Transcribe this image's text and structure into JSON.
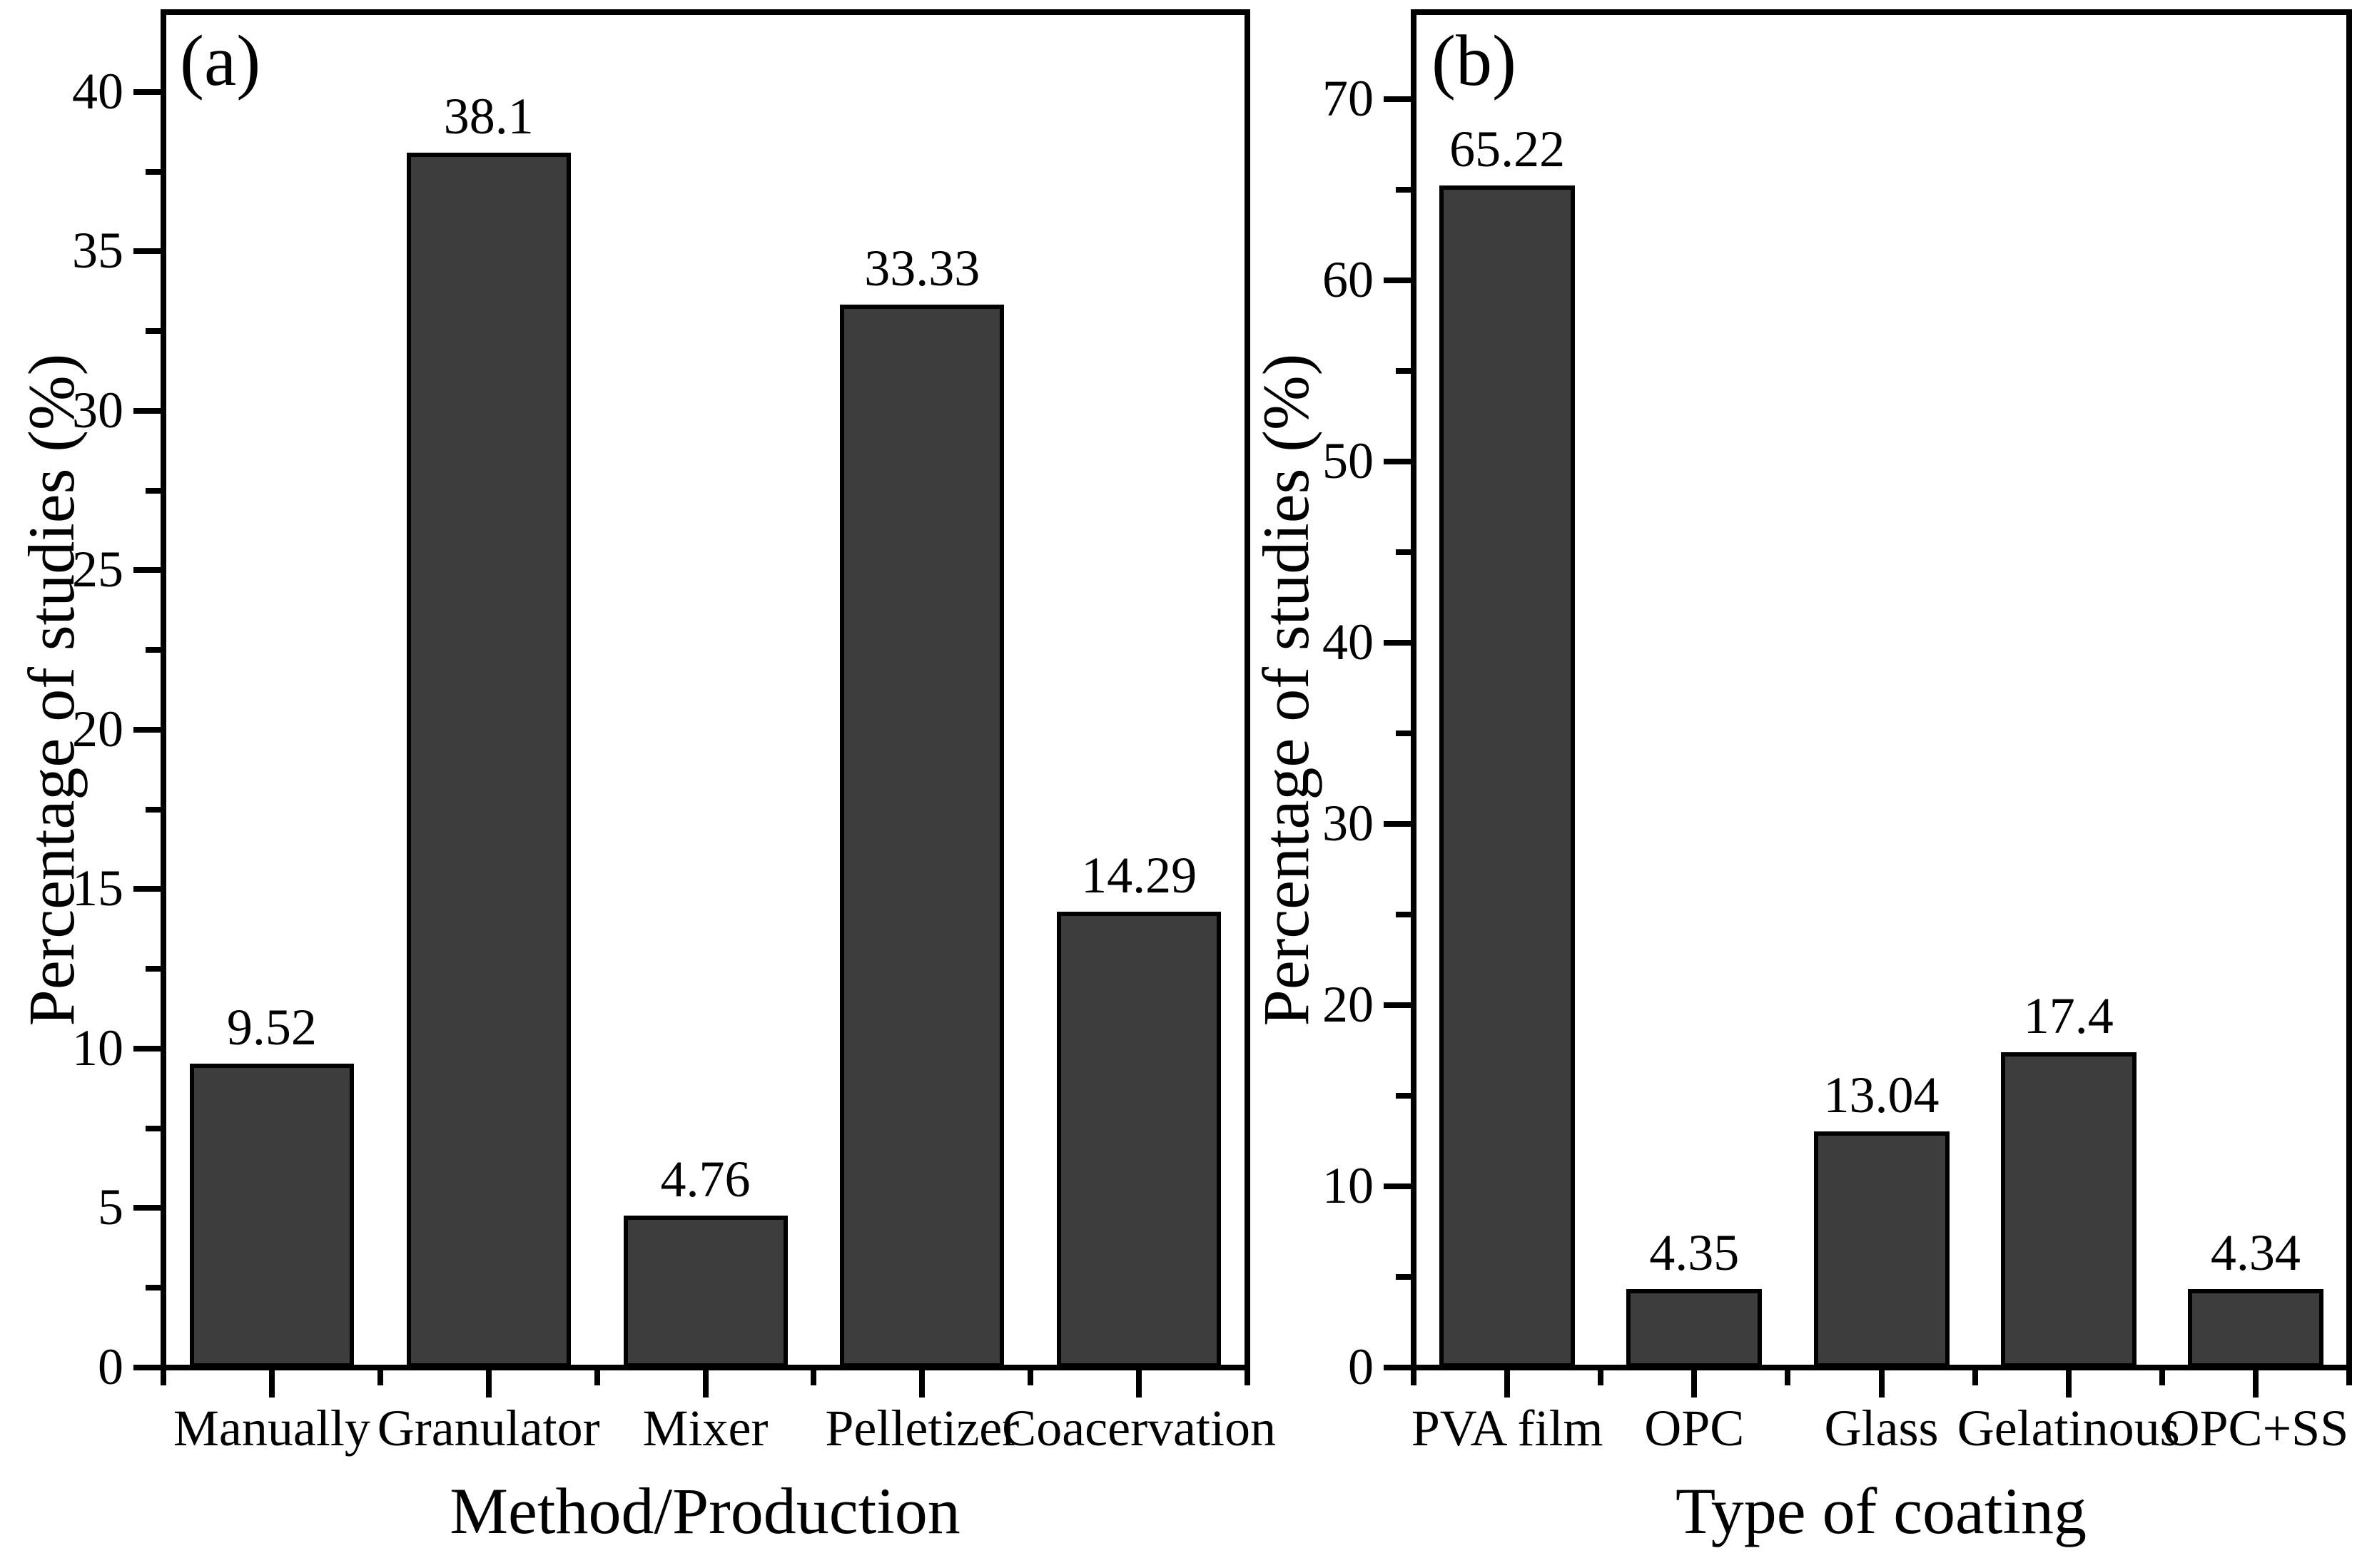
{
  "figure": {
    "background": "#ffffff",
    "frame_color": "#000000",
    "text_color": "#000000",
    "bar_fill": "#3d3d3d",
    "bar_border": "#000000"
  },
  "chart_data": [
    {
      "type": "bar",
      "panel_label": "(a)",
      "title": "",
      "xlabel": "Method/Production",
      "ylabel": "Percentage of studies (%)",
      "categories": [
        "Manually",
        "Granulator",
        "Mixer",
        "Pelletizer",
        "Coacervation"
      ],
      "values": [
        9.52,
        38.1,
        4.76,
        33.33,
        14.29
      ],
      "value_labels": [
        "9.52",
        "38.1",
        "4.76",
        "33.33",
        "14.29"
      ],
      "ylim": [
        0,
        42.5
      ],
      "yticks_major": [
        0,
        5,
        10,
        15,
        20,
        25,
        30,
        35,
        40
      ],
      "ytick_minor_step": 2.5,
      "grid": false,
      "legend": null
    },
    {
      "type": "bar",
      "panel_label": "(b)",
      "title": "",
      "xlabel": "Type of coating",
      "ylabel": "Percentage of studies (%)",
      "categories": [
        "PVA film",
        "OPC",
        "Glass",
        "Gelatinous",
        "OPC+SS"
      ],
      "values": [
        65.22,
        4.35,
        13.04,
        17.4,
        4.34
      ],
      "value_labels": [
        "65.22",
        "4.35",
        "13.04",
        "17.4",
        "4.34"
      ],
      "ylim": [
        0,
        74.8
      ],
      "yticks_major": [
        0,
        10,
        20,
        30,
        40,
        50,
        60,
        70
      ],
      "ytick_minor_step": 5,
      "grid": false,
      "legend": null
    }
  ]
}
